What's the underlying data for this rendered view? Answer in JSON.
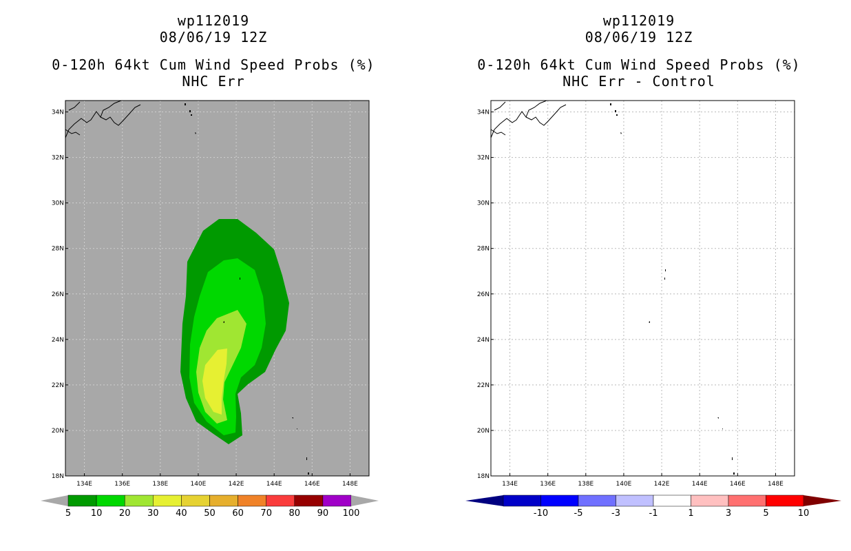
{
  "left_panel": {
    "title_line1": "wp112019",
    "title_line2": "08/06/19 12Z",
    "title_line3": "0-120h 64kt Cum Wind Speed Probs (%)",
    "title_line4": "NHC Err",
    "background_color": "#a8a8a8",
    "colorbar": {
      "labels": [
        "5",
        "10",
        "20",
        "30",
        "40",
        "50",
        "60",
        "70",
        "80",
        "90",
        "100"
      ],
      "colors": [
        "#009a00",
        "#00d800",
        "#a0e632",
        "#e6f032",
        "#e6d232",
        "#e6af2d",
        "#f08228",
        "#fa3c3c",
        "#960000",
        "#a000c8"
      ]
    }
  },
  "right_panel": {
    "title_line1": "wp112019",
    "title_line2": "08/06/19 12Z",
    "title_line3": "0-120h 64kt Cum Wind Speed Probs (%)",
    "title_line4": "NHC Err - Control",
    "background_color": "#ffffff",
    "colorbar": {
      "labels": [
        "-10",
        "-5",
        "-3",
        "-1",
        "1",
        "3",
        "5",
        "10"
      ],
      "colors": [
        "#0000c8",
        "#0000ff",
        "#7070ff",
        "#c0c0ff",
        "#ffffff",
        "#ffc0c0",
        "#ff7070",
        "#ff0000"
      ],
      "end_low": "#000080",
      "end_high": "#800000"
    }
  },
  "axes": {
    "lat_labels": [
      "18N",
      "20N",
      "22N",
      "24N",
      "26N",
      "28N",
      "30N",
      "32N",
      "34N"
    ],
    "lon_labels": [
      "134E",
      "136E",
      "138E",
      "140E",
      "142E",
      "144E",
      "146E",
      "148E"
    ]
  },
  "contours": {
    "levels": [
      5,
      10,
      20,
      30
    ]
  }
}
